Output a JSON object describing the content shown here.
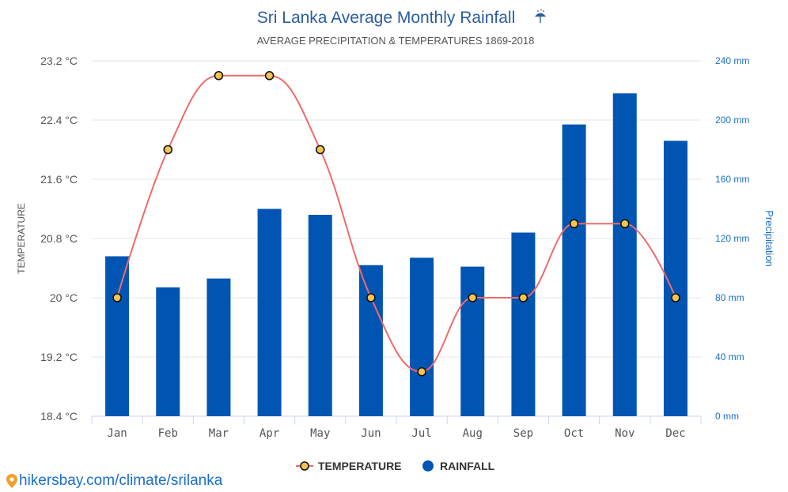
{
  "colors": {
    "bar": "#0055b3",
    "line": "#ef6a6a",
    "marker": "#f6c452",
    "title": "#2a5d9f",
    "right_axis": "#1a6fc9"
  },
  "footer": {
    "icon": "map-pin-icon",
    "link": "hikersbay.com/climate/srilanka"
  },
  "chart_data": {
    "type": "bar+line",
    "title": "Sri Lanka Average Monthly Rainfall",
    "title_icon": "umbrella-rain-icon",
    "subtitle": "AVERAGE PRECIPITATION & TEMPERATURES 1869-2018",
    "categories": [
      "Jan",
      "Feb",
      "Mar",
      "Apr",
      "May",
      "Jun",
      "Jul",
      "Aug",
      "Sep",
      "Oct",
      "Nov",
      "Dec"
    ],
    "y_left": {
      "title": "TEMPERATURE",
      "range": [
        18.4,
        23.2
      ],
      "ticks": [
        "18.4 °C",
        "19.2 °C",
        "20 °C",
        "20.8 °C",
        "21.6 °C",
        "22.4 °C",
        "23.2 °C"
      ]
    },
    "y_right": {
      "title": "Precipitation",
      "range": [
        0,
        240
      ],
      "ticks": [
        "0 mm",
        "40 mm",
        "80 mm",
        "120 mm",
        "160 mm",
        "200 mm",
        "240 mm"
      ]
    },
    "grid": true,
    "legend_position": "bottom",
    "series": [
      {
        "name": "TEMPERATURE",
        "type": "spline",
        "axis": "left",
        "unit": "°C",
        "values": [
          20,
          22,
          23,
          23,
          22,
          20,
          19,
          20,
          20,
          21,
          21,
          20
        ]
      },
      {
        "name": "RAINFALL",
        "type": "bar",
        "axis": "right",
        "unit": "mm",
        "values": [
          108,
          87,
          93,
          140,
          136,
          102,
          107,
          101,
          124,
          197,
          218,
          186
        ]
      }
    ]
  }
}
